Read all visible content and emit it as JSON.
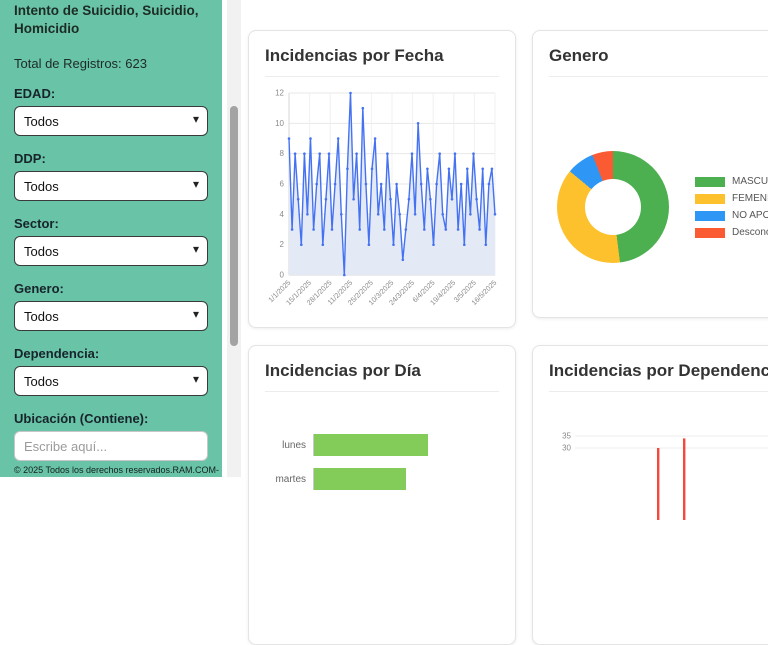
{
  "theme": {
    "sidebar_bg": "#69c3a6",
    "card_bg": "#ffffff"
  },
  "sidebar": {
    "title": "Intento de Suicidio, Suicidio, Homicidio",
    "total_label": "Total de Registros: 623",
    "filters": [
      {
        "label": "EDAD:",
        "value": "Todos"
      },
      {
        "label": "DDP:",
        "value": "Todos"
      },
      {
        "label": "Sector:",
        "value": "Todos"
      },
      {
        "label": "Genero:",
        "value": "Todos"
      },
      {
        "label": "Dependencia:",
        "value": "Todos"
      }
    ],
    "ubicacion": {
      "label": "Ubicación (Contiene):",
      "placeholder": "Escribe aquí..."
    },
    "footer": "© 2025 Todos los derechos reservados.RAM.COM-"
  },
  "cards": {
    "fecha": {
      "title": "Incidencias por Fecha"
    },
    "genero": {
      "title": "Genero"
    },
    "dia": {
      "title": "Incidencias por Día"
    },
    "dependencia": {
      "title": "Incidencias por Dependencia"
    }
  },
  "chart_data": [
    {
      "name": "incidencias_por_fecha",
      "type": "line",
      "title": "Incidencias por Fecha",
      "color": "#4472f2",
      "fill_color": "#e4e9f6",
      "ylim": [
        0,
        12
      ],
      "y_ticks": [
        0,
        2,
        4,
        6,
        8,
        10,
        12
      ],
      "x_tick_labels": [
        "1/1/2025",
        "15/1/2025",
        "28/1/2025",
        "11/2/2025",
        "25/2/2025",
        "10/3/2025",
        "24/3/2025",
        "6/4/2025",
        "19/4/2025",
        "3/5/2025",
        "16/5/2025"
      ],
      "values": [
        9,
        3,
        8,
        5,
        2,
        8,
        4,
        9,
        3,
        6,
        8,
        2,
        5,
        8,
        3,
        6,
        9,
        4,
        0,
        7,
        12,
        5,
        8,
        3,
        11,
        6,
        2,
        7,
        9,
        4,
        6,
        3,
        8,
        5,
        2,
        6,
        4,
        1,
        3,
        5,
        8,
        4,
        10,
        6,
        3,
        7,
        5,
        2,
        6,
        8,
        4,
        3,
        7,
        5,
        8,
        3,
        6,
        2,
        7,
        4,
        8,
        5,
        3,
        7,
        2,
        6,
        7,
        4
      ]
    },
    {
      "name": "genero",
      "type": "pie",
      "title": "Genero",
      "labels": [
        "MASCULINO",
        "FEMENINA",
        "NO APORTA",
        "Desconocido"
      ],
      "values_percent": [
        48,
        38,
        8,
        6
      ],
      "colors": [
        "#4caf50",
        "#fcc12c",
        "#2e96f5",
        "#fb5b33"
      ],
      "legend_position": "right",
      "hole_ratio": 0.5
    },
    {
      "name": "incidencias_por_dia",
      "type": "bar",
      "orientation": "horizontal",
      "title": "Incidencias por Día",
      "categories": [
        "lunes",
        "martes"
      ],
      "values": [
        114,
        92
      ],
      "color": "#84cc5a"
    },
    {
      "name": "incidencias_por_dependencia",
      "type": "bar",
      "title": "Incidencias por Dependencia",
      "color": "#f4483a",
      "y_ticks_visible": [
        35,
        30
      ],
      "values": [
        0,
        0,
        0,
        0,
        0,
        0,
        0,
        0,
        0,
        0,
        0,
        0,
        0,
        0,
        0,
        30,
        0,
        0,
        0,
        0,
        34,
        0,
        0,
        0,
        0,
        0,
        0,
        0,
        0,
        0,
        0,
        0,
        0,
        0,
        0,
        0,
        0,
        0,
        0,
        0,
        0,
        0,
        0,
        0,
        0,
        0,
        0,
        0,
        0,
        0
      ]
    }
  ]
}
